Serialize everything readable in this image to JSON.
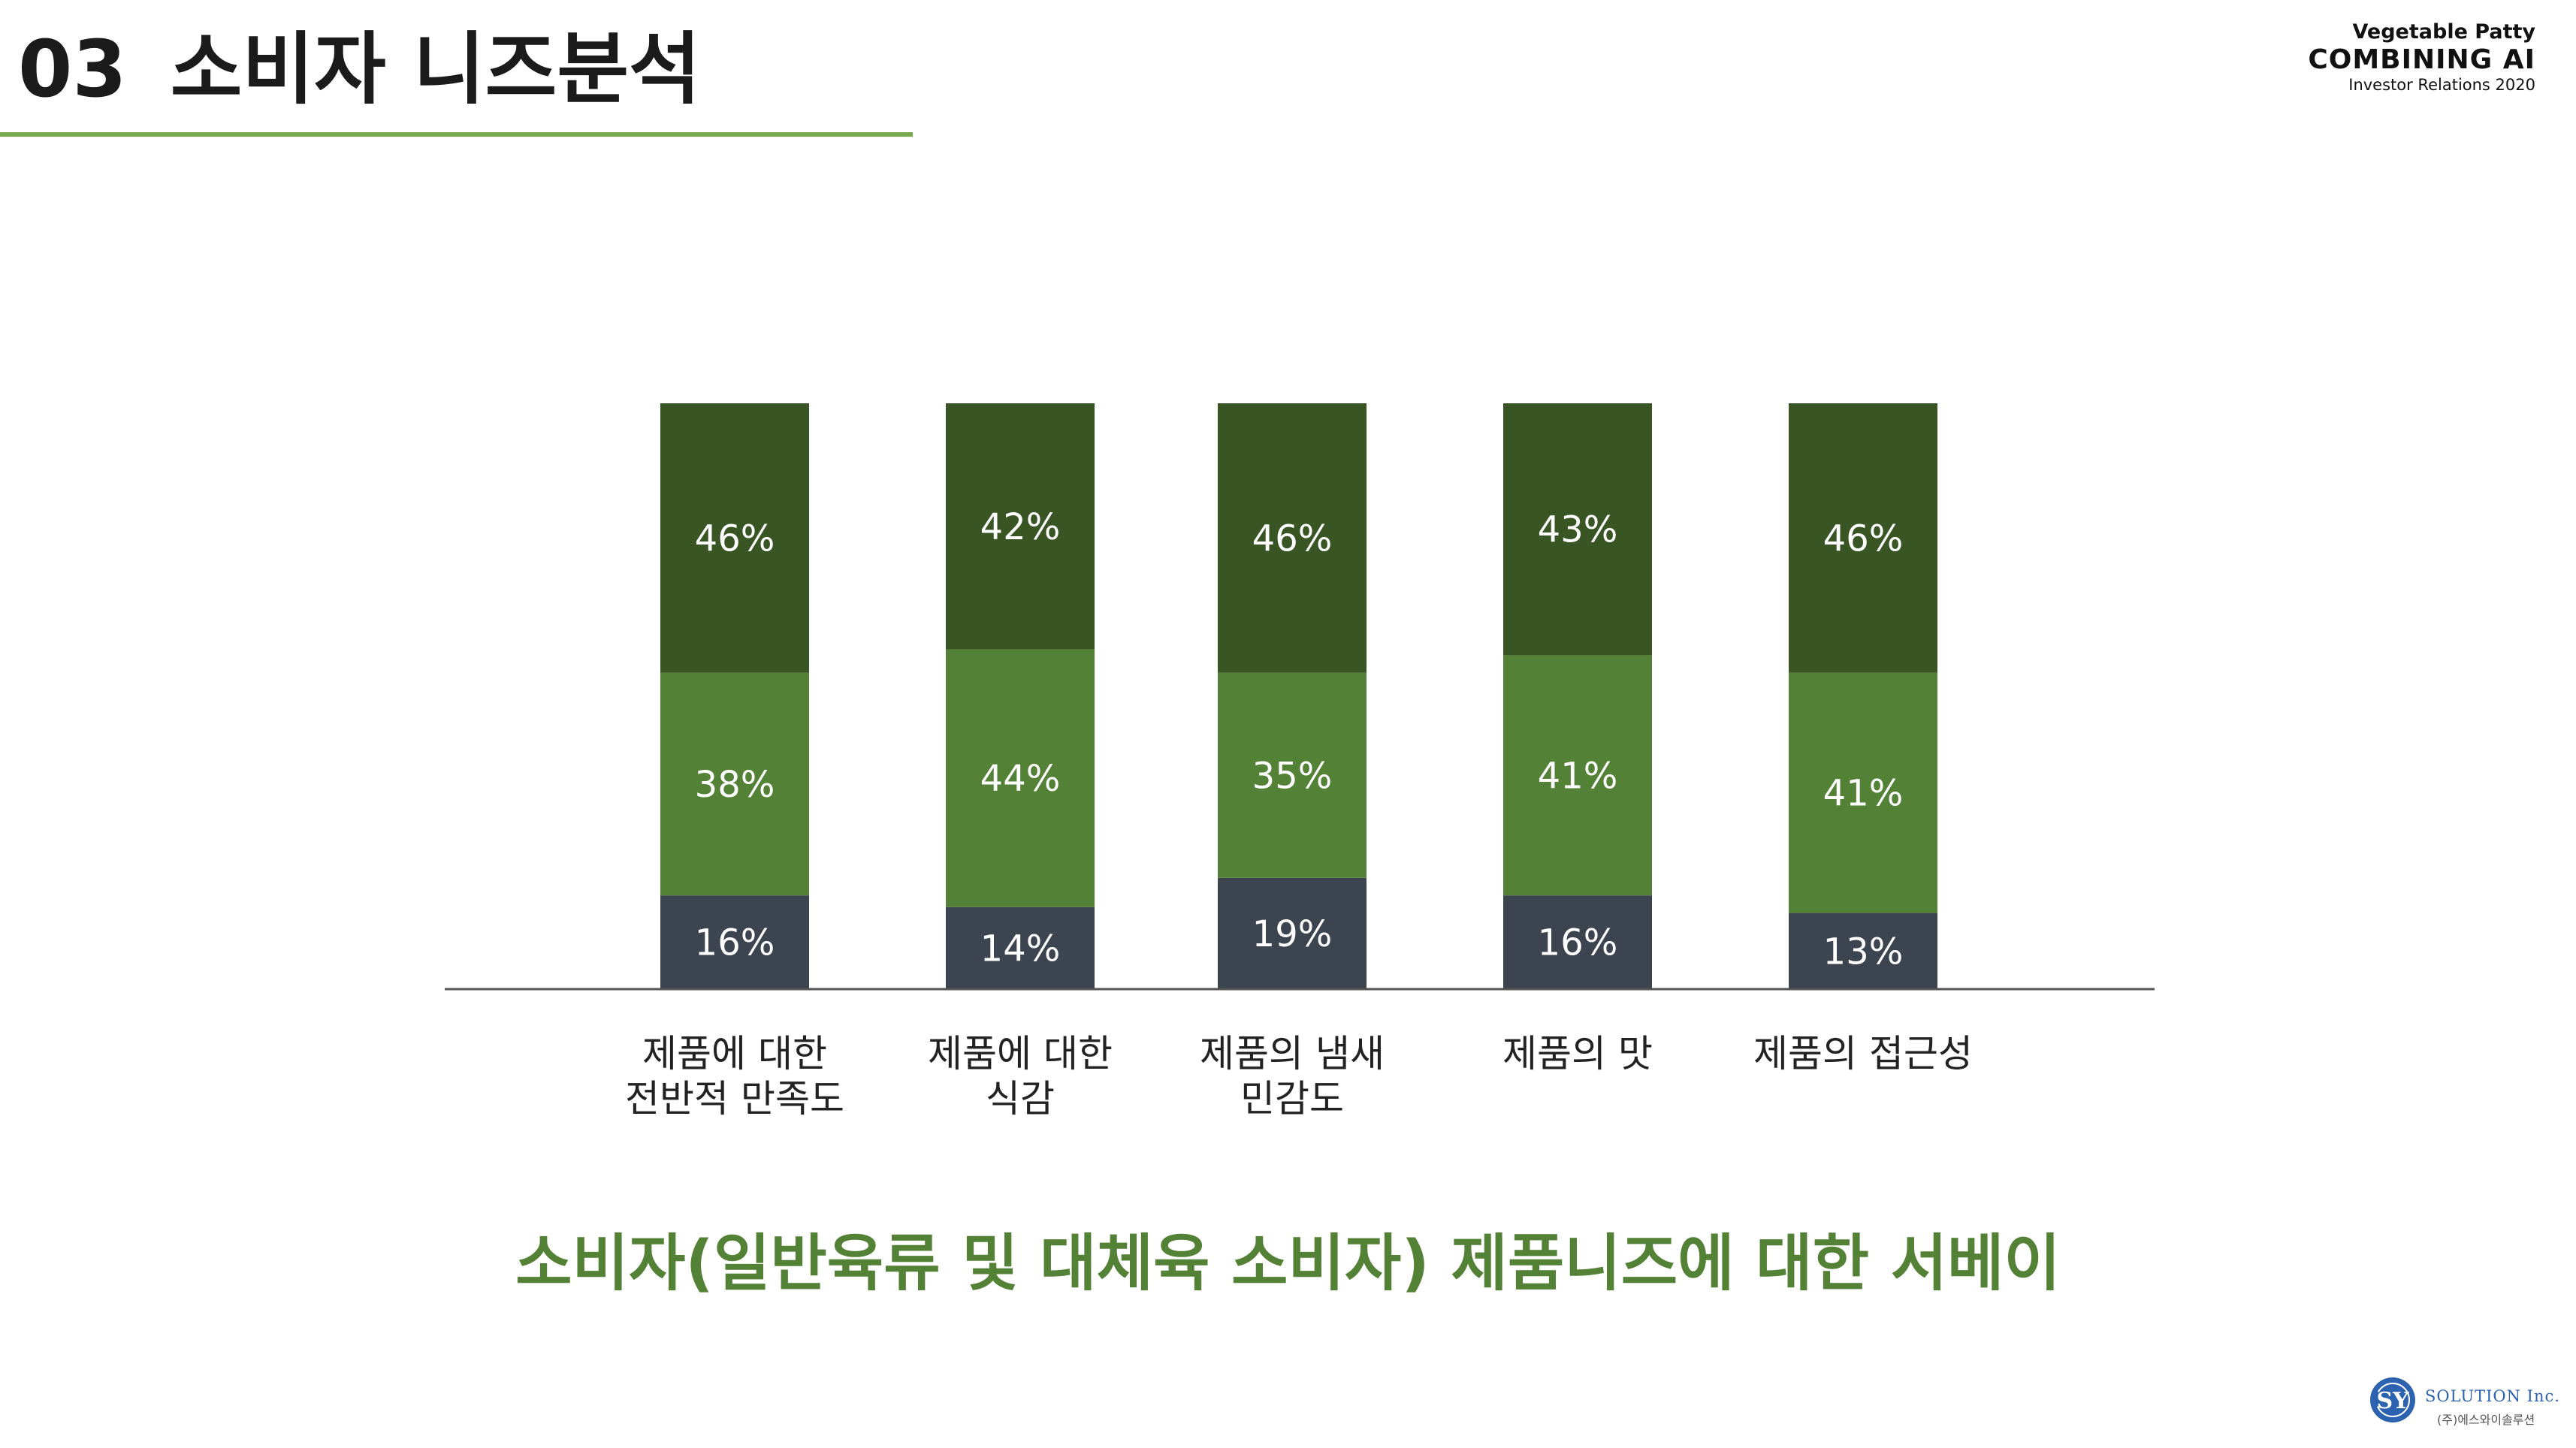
{
  "header": {
    "section_number": "03",
    "title": "소비자 니즈분석"
  },
  "brand": {
    "line1": "Vegetable Patty",
    "line2": "COMBINING AI",
    "line3": "Investor Relations 2020"
  },
  "colors": {
    "accent": "#79aa50",
    "dark_green": "#385523",
    "mid_green": "#538135",
    "slate": "#3b444f",
    "caption": "#538135"
  },
  "chart_data": {
    "type": "bar",
    "stacked": true,
    "categories": [
      [
        "제품에 대한",
        "전반적 만족도"
      ],
      [
        "제품에 대한",
        "식감"
      ],
      [
        "제품의 냄새",
        "민감도"
      ],
      [
        "제품의 맛"
      ],
      [
        "제품의 접근성"
      ]
    ],
    "series": [
      {
        "values": [
          16,
          14,
          19,
          16,
          13
        ],
        "color": "#3b444f"
      },
      {
        "values": [
          38,
          44,
          35,
          41,
          41
        ],
        "color": "#538135"
      },
      {
        "values": [
          46,
          42,
          46,
          43,
          46
        ],
        "color": "#385523"
      }
    ],
    "data_labels": [
      [
        "16%",
        "14%",
        "19%",
        "16%",
        "13%"
      ],
      [
        "38%",
        "44%",
        "35%",
        "41%",
        "41%"
      ],
      [
        "46%",
        "42%",
        "46%",
        "43%",
        "46%"
      ]
    ],
    "ylim": [
      0,
      100
    ],
    "grid": false,
    "legend": "none"
  },
  "caption": "소비자(일반육류 및 대체육 소비자) 제품니즈에 대한 서베이",
  "logo": {
    "mark": "SY",
    "name": "SOLUTION Inc.",
    "sub": "(주)에스와이솔루션"
  }
}
